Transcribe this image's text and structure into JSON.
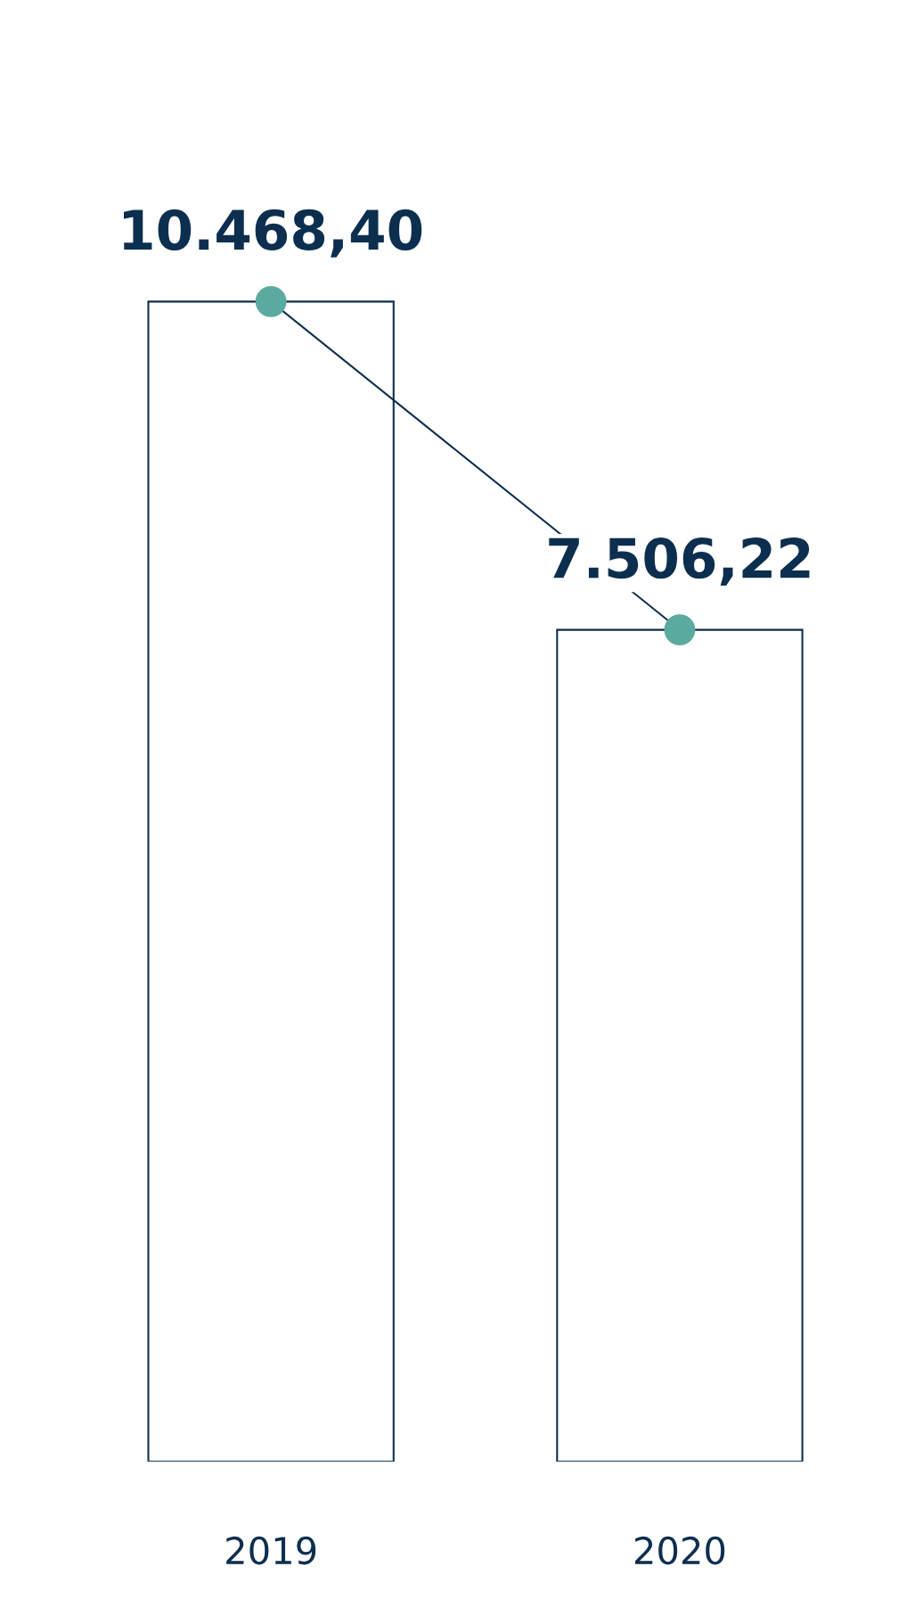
{
  "chart_data": {
    "type": "bar",
    "categories": [
      "2019",
      "2020"
    ],
    "series": [
      {
        "color": "#0d2f4f",
        "values": [
          10468.4,
          7506.22
        ],
        "value_labels": [
          "10.468,40",
          "7.506,22"
        ]
      },
      {
        "type": "line",
        "color": "#0d2f4f",
        "colors": [
          "#5aaa9f",
          "#5aaa9f"
        ],
        "marker": "circle",
        "values": [
          10468.4,
          7506.22
        ]
      }
    ],
    "grid": false,
    "legend": false,
    "tick_labels": "x"
  }
}
